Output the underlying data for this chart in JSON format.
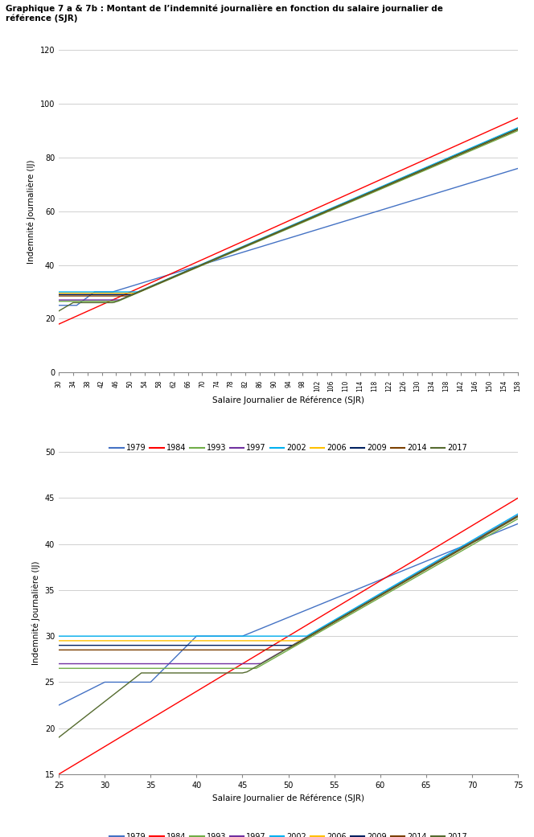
{
  "title_line1": "Graphique 7 a & 7b : Montant de l’indemnité journalière en fonction du salaire journalier de",
  "title_line2": "référence (SJR)",
  "years": [
    1979,
    1984,
    1993,
    1997,
    2002,
    2006,
    2009,
    2014,
    2017
  ],
  "colors": [
    "#4472C4",
    "#FF0000",
    "#70AD47",
    "#7030A0",
    "#00B0F0",
    "#FFC000",
    "#002060",
    "#7B3F00",
    "#556B2F"
  ],
  "chart1": {
    "xmin": 30,
    "xmax": 158,
    "xstep": 4,
    "ymin": 0,
    "ymax": 120,
    "ystep": 20,
    "xlabel": "Salaire Journalier de Référence (SJR)",
    "ylabel": "Indemnité Journalière (IJ)"
  },
  "chart2": {
    "xmin": 25,
    "xmax": 75,
    "xstep": 5,
    "ymin": 15,
    "ymax": 50,
    "ystep": 5,
    "xlabel": "Salaire Journalier de Référence (SJR)",
    "ylabel": "Indemnité Journalière (IJ)"
  }
}
